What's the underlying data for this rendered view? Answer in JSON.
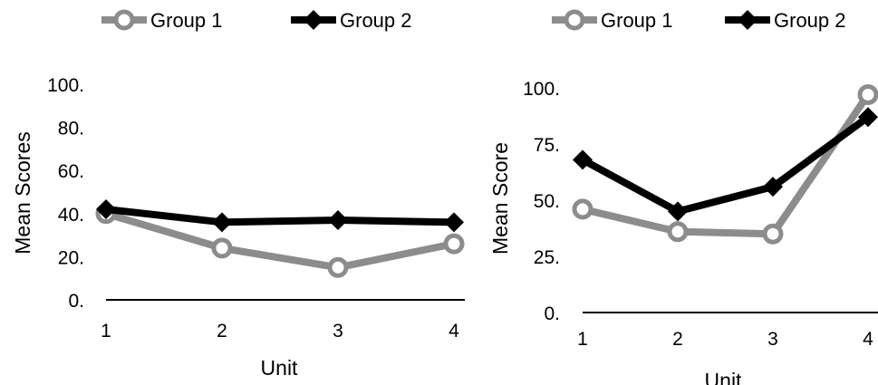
{
  "colors": {
    "group1": "#8c8c8c",
    "group2": "#000000",
    "axis": "#000000"
  },
  "chart_data": [
    {
      "type": "line",
      "categories": [
        "1",
        "2",
        "3",
        "4"
      ],
      "series": [
        {
          "name": "Group 1",
          "values": [
            40,
            24,
            15,
            26
          ],
          "marker": "circle"
        },
        {
          "name": "Group 2",
          "values": [
            42,
            36,
            37,
            36
          ],
          "marker": "diamond"
        }
      ],
      "xlabel": "Unit",
      "ylabel": "Mean Scores",
      "ylim": [
        0,
        100
      ],
      "yticks": [
        "0.",
        "20.",
        "40.",
        "60.",
        "80.",
        "100."
      ],
      "legend": "top",
      "grid": false
    },
    {
      "type": "line",
      "categories": [
        "1",
        "2",
        "3",
        "4"
      ],
      "series": [
        {
          "name": "Group 1",
          "values": [
            46,
            36,
            35,
            97
          ],
          "marker": "circle"
        },
        {
          "name": "Group 2",
          "values": [
            68,
            45,
            56,
            87
          ],
          "marker": "diamond"
        }
      ],
      "xlabel": "Unit",
      "ylabel": "Mean Score",
      "ylim": [
        0,
        100
      ],
      "yticks": [
        "0.",
        "25.",
        "50.",
        "75.",
        "100."
      ],
      "legend": "top",
      "grid": false
    }
  ]
}
